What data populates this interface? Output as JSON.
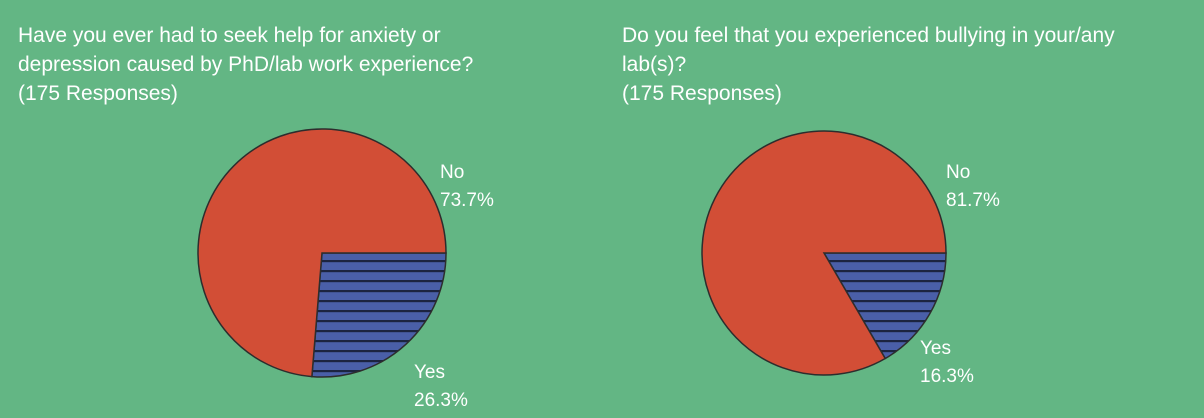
{
  "colors": {
    "background": "#63b684",
    "no_slice": "#d24e36",
    "yes_slice": "#4a5fa8",
    "yes_stripes": "#1c2440",
    "outline": "#2d2d2d",
    "text": "#ffffff"
  },
  "chart_data": [
    {
      "type": "pie",
      "title": "Have you ever had to seek help for anxiety or depression caused by PhD/lab work experience?",
      "title_lines": [
        "Have you ever had to seek help for anxiety or",
        "depression caused by PhD/lab work experience?"
      ],
      "subtitle": "(175 Responses)",
      "slices": [
        {
          "label": "No",
          "value": 73.7,
          "value_label": "73.7%",
          "color": "#d24e36",
          "pattern": "solid"
        },
        {
          "label": "Yes",
          "value": 26.3,
          "value_label": "26.3%",
          "color": "#4a5fa8",
          "pattern": "horizontal-stripes"
        }
      ]
    },
    {
      "type": "pie",
      "title": "Do you feel that you experienced bullying in your/any lab(s)?",
      "title_lines": [
        "Do you feel that you experienced bullying in your/any",
        "lab(s)?"
      ],
      "subtitle": "(175 Responses)",
      "slices": [
        {
          "label": "No",
          "value": 81.7,
          "value_label": "81.7%",
          "color": "#d24e36",
          "pattern": "solid"
        },
        {
          "label": "Yes",
          "value": 16.3,
          "value_label": "16.3%",
          "color": "#4a5fa8",
          "pattern": "horizontal-stripes"
        }
      ]
    }
  ]
}
